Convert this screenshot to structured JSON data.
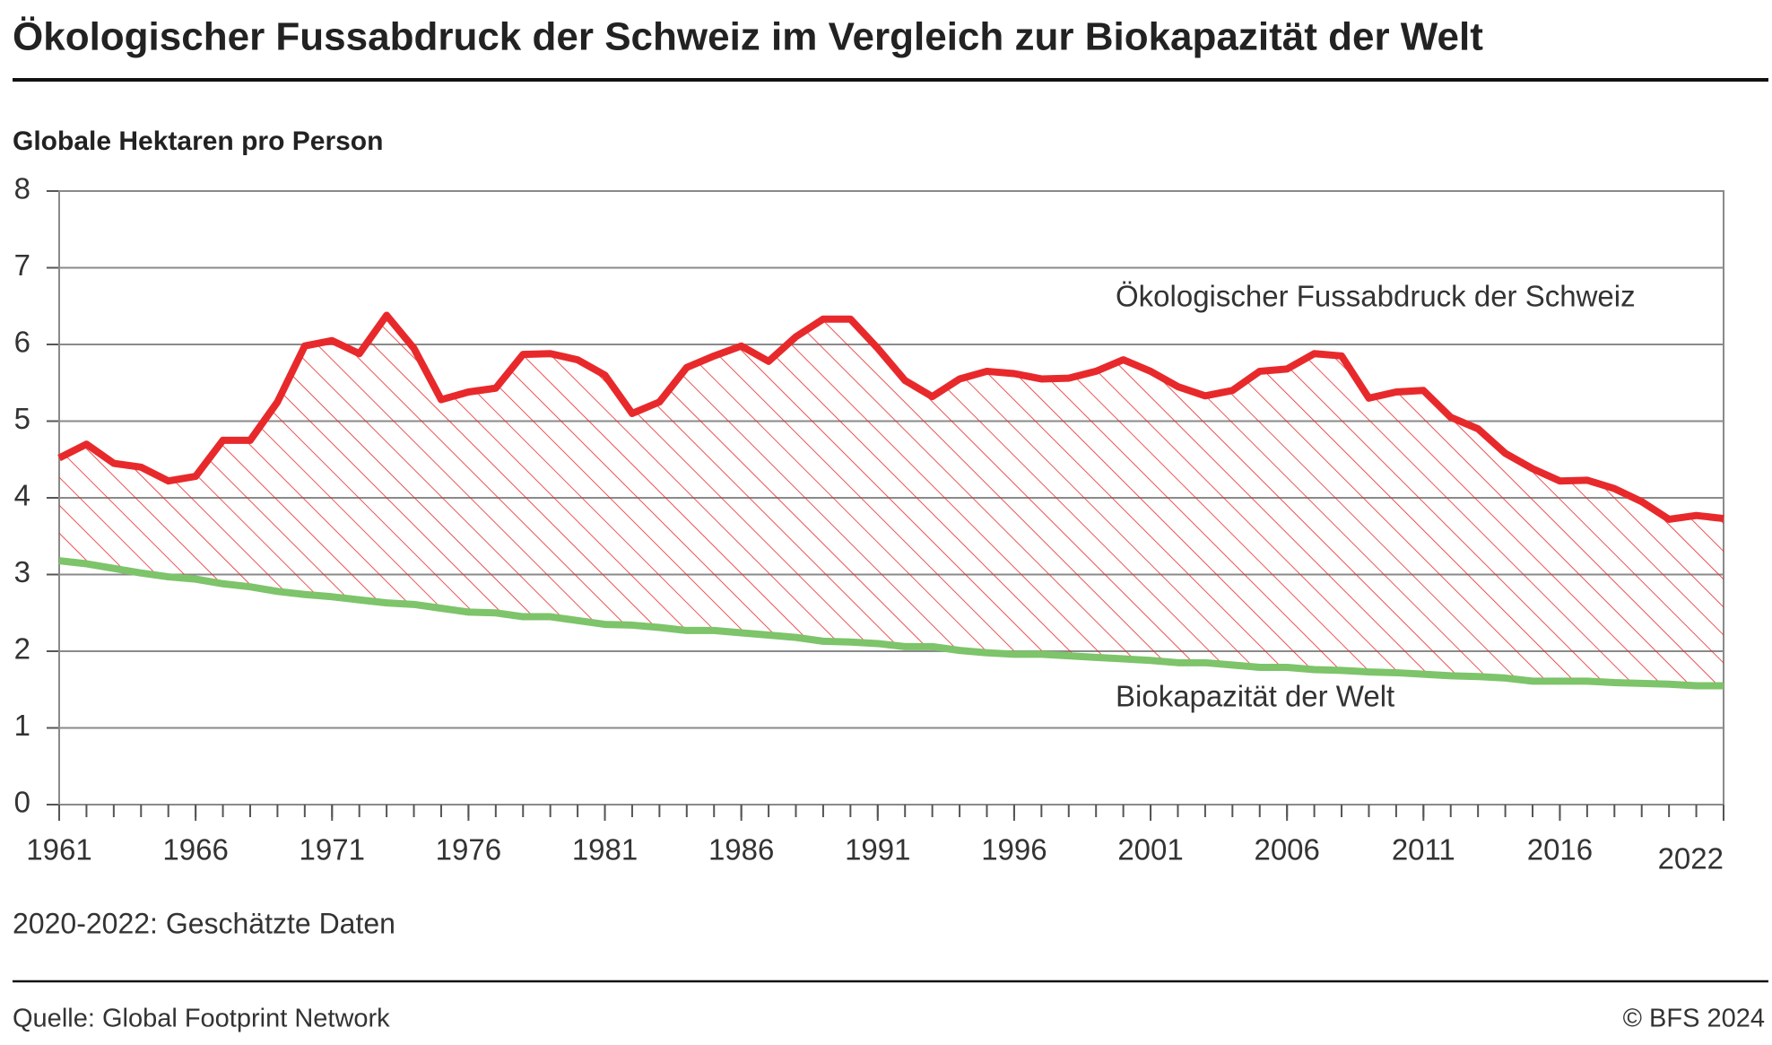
{
  "chart_data": {
    "type": "line",
    "title": "Ökologischer Fussabdruck der Schweiz im Vergleich zur Biokapazität der Welt",
    "y_label": "Globale Hektaren pro Person",
    "note": "2020-2022: Geschätzte Daten",
    "source": "Quelle: Global Footprint Network",
    "copyright": "© BFS 2024",
    "x": [
      1961,
      1962,
      1963,
      1964,
      1965,
      1966,
      1967,
      1968,
      1969,
      1970,
      1971,
      1972,
      1973,
      1974,
      1975,
      1976,
      1977,
      1978,
      1979,
      1980,
      1981,
      1982,
      1983,
      1984,
      1985,
      1986,
      1987,
      1988,
      1989,
      1990,
      1991,
      1992,
      1993,
      1994,
      1995,
      1996,
      1997,
      1998,
      1999,
      2000,
      2001,
      2002,
      2003,
      2004,
      2005,
      2006,
      2007,
      2008,
      2009,
      2010,
      2011,
      2012,
      2013,
      2014,
      2015,
      2016,
      2017,
      2018,
      2019,
      2020,
      2021,
      2022
    ],
    "series": [
      {
        "name": "Ökologischer Fussabdruck der Schweiz",
        "color": "#e8292b",
        "values": [
          4.52,
          4.7,
          4.45,
          4.4,
          4.22,
          4.28,
          4.75,
          4.75,
          5.25,
          5.98,
          6.05,
          5.88,
          6.38,
          5.95,
          5.28,
          5.38,
          5.43,
          5.87,
          5.88,
          5.8,
          5.6,
          5.1,
          5.25,
          5.7,
          5.85,
          5.98,
          5.78,
          6.1,
          6.33,
          6.33,
          5.95,
          5.53,
          5.32,
          5.55,
          5.65,
          5.62,
          5.55,
          5.56,
          5.65,
          5.8,
          5.65,
          5.45,
          5.33,
          5.4,
          5.65,
          5.68,
          5.88,
          5.85,
          5.3,
          5.38,
          5.4,
          5.05,
          4.9,
          4.58,
          4.38,
          4.22,
          4.23,
          4.12,
          3.95,
          3.72,
          3.77,
          3.73
        ]
      },
      {
        "name": "Biokapazität der Welt",
        "color": "#7dc46a",
        "values": [
          3.18,
          3.14,
          3.08,
          3.02,
          2.97,
          2.94,
          2.88,
          2.84,
          2.78,
          2.74,
          2.71,
          2.67,
          2.63,
          2.61,
          2.56,
          2.51,
          2.5,
          2.45,
          2.45,
          2.4,
          2.35,
          2.34,
          2.31,
          2.27,
          2.27,
          2.24,
          2.21,
          2.18,
          2.13,
          2.12,
          2.1,
          2.06,
          2.06,
          2.01,
          1.98,
          1.96,
          1.96,
          1.94,
          1.92,
          1.9,
          1.88,
          1.85,
          1.85,
          1.82,
          1.79,
          1.79,
          1.76,
          1.75,
          1.73,
          1.72,
          1.7,
          1.68,
          1.67,
          1.65,
          1.61,
          1.61,
          1.61,
          1.59,
          1.58,
          1.57,
          1.55,
          1.55
        ]
      }
    ],
    "xlim": [
      1961,
      2022
    ],
    "xticks": [
      1961,
      1966,
      1971,
      1976,
      1981,
      1986,
      1991,
      1996,
      2001,
      2006,
      2011,
      2016,
      2022
    ],
    "ylim": [
      0,
      8
    ],
    "yticks": [
      0,
      1,
      2,
      3,
      4,
      5,
      6,
      7,
      8
    ],
    "grid": true,
    "hatch_between": true
  }
}
